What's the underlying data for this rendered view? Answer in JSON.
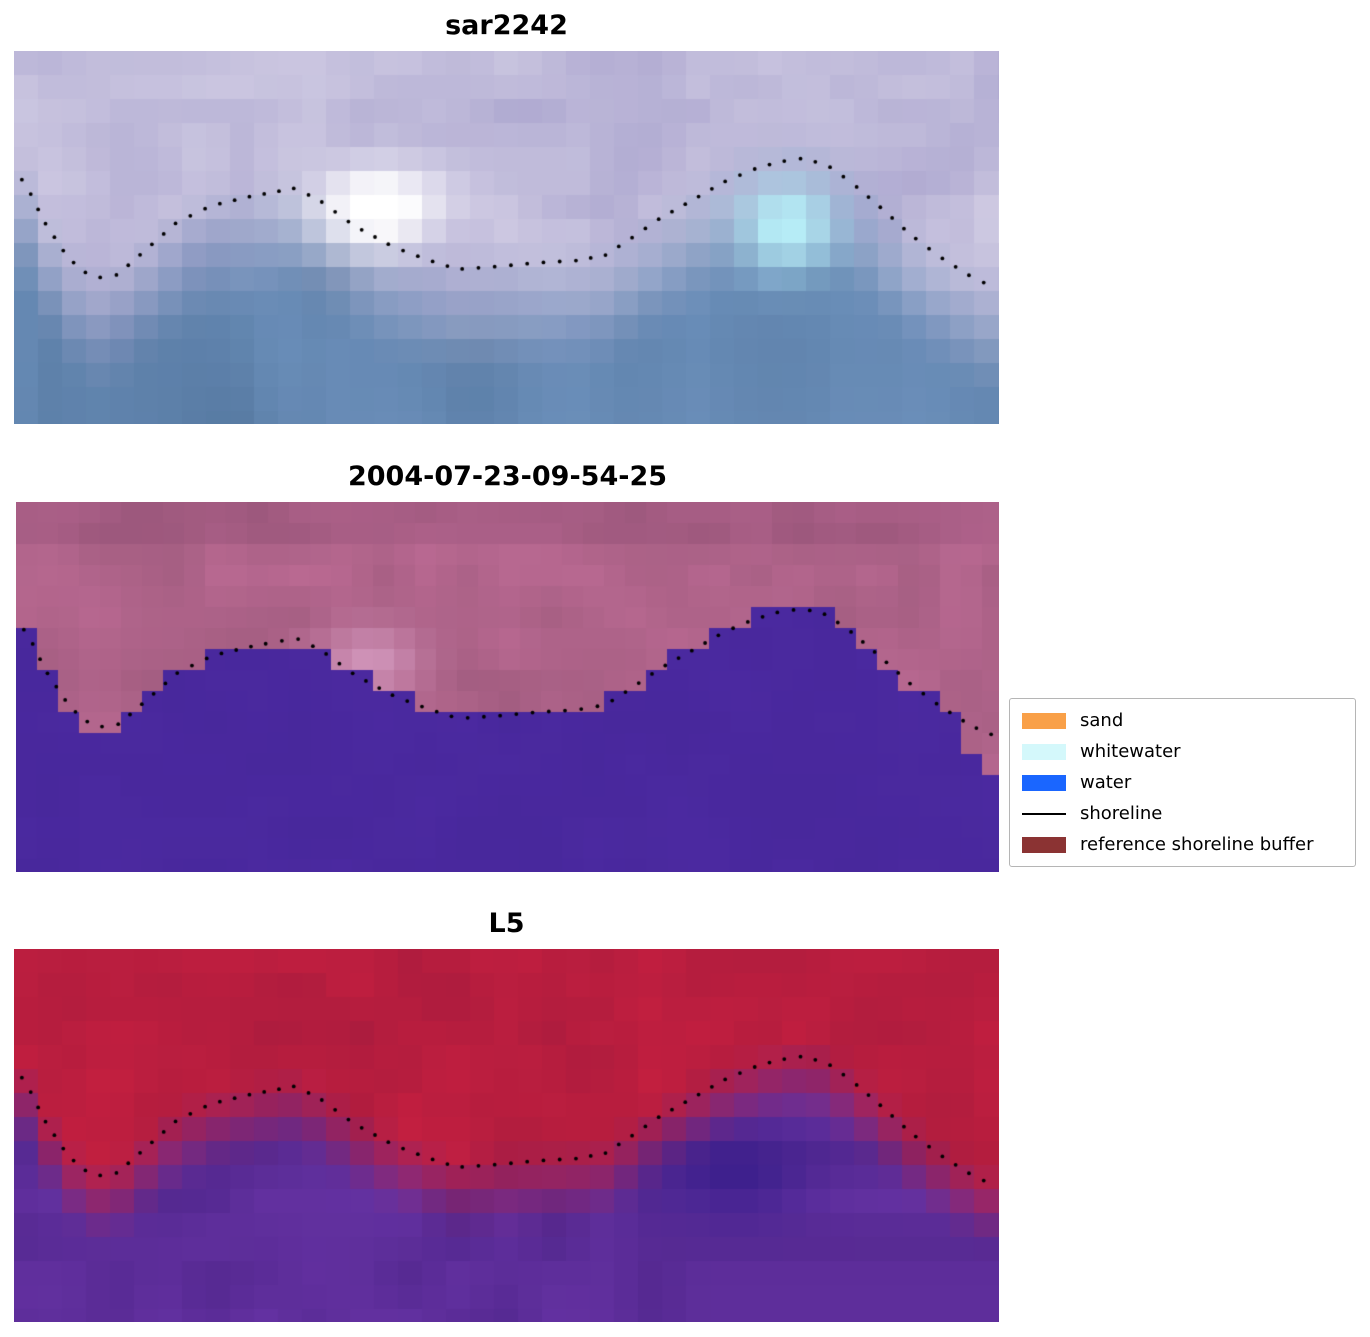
{
  "figure": {
    "background": "#ffffff"
  },
  "chart_data": {
    "type": "heatmap",
    "layout": "three stacked image panels with dotted detected shoreline overlay, legend at center right",
    "panels": [
      {
        "title": "sar2242",
        "kind": "sar",
        "description": "SAR backscatter image: lavender/pink land tones above, steel blue water below, bright white patch near x=0.37 and cyan patch near x=0.79, dotted shoreline",
        "palette": {
          "land_dark": "#a49ecb",
          "land_light": "#dcd8ea",
          "water_dark": "#54779f",
          "water_light": "#7b9fcc",
          "white_patch": "#ffffff",
          "cyan_patch": "#b6ecf6"
        }
      },
      {
        "title": "2004-07-23-09-54-25",
        "kind": "classified",
        "description": "Classified optical image: magenta reference shoreline buffer above, indigo water below with blocky stepped boundary, pink patch near x=0.36, dotted shoreline",
        "palette": {
          "buffer_dark": "#a25d80",
          "buffer_light": "#bb6a93",
          "water": "#48289c",
          "water_light": "#502ca6",
          "pink_patch": "#cf93b8"
        }
      },
      {
        "title": "L5",
        "kind": "l5",
        "description": "Landsat 5 false-colour image: crimson red land above, purple water below, darker purple patch near x=0.73, dotted shoreline",
        "palette": {
          "land_dark": "#ab1c3e",
          "land_light": "#c82040",
          "water_dark": "#53288f",
          "water_light": "#6a35a8",
          "dark_patch": "#3a1f8c"
        }
      }
    ],
    "shoreline_norm": [
      [
        0.01,
        0.345
      ],
      [
        0.03,
        0.455
      ],
      [
        0.055,
        0.555
      ],
      [
        0.08,
        0.61
      ],
      [
        0.105,
        0.6
      ],
      [
        0.135,
        0.53
      ],
      [
        0.165,
        0.46
      ],
      [
        0.2,
        0.415
      ],
      [
        0.24,
        0.39
      ],
      [
        0.285,
        0.368
      ],
      [
        0.31,
        0.4
      ],
      [
        0.345,
        0.468
      ],
      [
        0.385,
        0.525
      ],
      [
        0.42,
        0.56
      ],
      [
        0.45,
        0.585
      ],
      [
        0.49,
        0.578
      ],
      [
        0.53,
        0.568
      ],
      [
        0.57,
        0.562
      ],
      [
        0.6,
        0.548
      ],
      [
        0.625,
        0.505
      ],
      [
        0.655,
        0.45
      ],
      [
        0.69,
        0.398
      ],
      [
        0.72,
        0.352
      ],
      [
        0.75,
        0.318
      ],
      [
        0.775,
        0.298
      ],
      [
        0.8,
        0.288
      ],
      [
        0.825,
        0.305
      ],
      [
        0.85,
        0.352
      ],
      [
        0.88,
        0.42
      ],
      [
        0.91,
        0.492
      ],
      [
        0.94,
        0.552
      ],
      [
        0.97,
        0.602
      ],
      [
        0.99,
        0.628
      ]
    ],
    "legend": {
      "position": "center right",
      "items": [
        {
          "label": "sand",
          "color": "#f9a048",
          "swatch": "patch"
        },
        {
          "label": "whitewater",
          "color": "#d4f8fb",
          "swatch": "patch"
        },
        {
          "label": "water",
          "color": "#1a66ff",
          "swatch": "patch"
        },
        {
          "label": "shoreline",
          "color": "#000000",
          "swatch": "line"
        },
        {
          "label": "reference shoreline buffer",
          "color": "#8b3333",
          "swatch": "patch"
        }
      ]
    }
  }
}
